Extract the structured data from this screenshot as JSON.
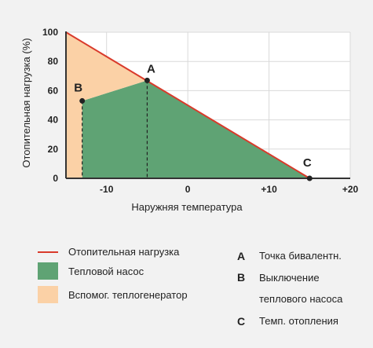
{
  "chart_data": {
    "type": "area",
    "xlabel": "Наружняя температура",
    "ylabel": "Отопительная нагрузка (%)",
    "xlim": [
      -15,
      20
    ],
    "ylim": [
      0,
      100
    ],
    "x_ticks": [
      {
        "value": -10,
        "label": "-10"
      },
      {
        "value": 0,
        "label": "0"
      },
      {
        "value": 10,
        "label": "+10"
      },
      {
        "value": 20,
        "label": "+20"
      }
    ],
    "y_ticks": [
      {
        "value": 0,
        "label": "0"
      },
      {
        "value": 20,
        "label": "20"
      },
      {
        "value": 40,
        "label": "40"
      },
      {
        "value": 60,
        "label": "60"
      },
      {
        "value": 80,
        "label": "80"
      },
      {
        "value": 100,
        "label": "100"
      }
    ],
    "grid": true,
    "series": [
      {
        "name": "Отопительная нагрузка",
        "kind": "line",
        "color": "#d93a2b",
        "points": [
          [
            -15,
            100
          ],
          [
            15,
            0
          ]
        ]
      },
      {
        "name": "Тепловой насос",
        "kind": "area",
        "color": "#5fa374",
        "points": [
          [
            -13,
            0
          ],
          [
            -13,
            53
          ],
          [
            -5,
            67
          ],
          [
            15,
            0
          ]
        ]
      },
      {
        "name": "Вспомог. теплогенератор",
        "kind": "area",
        "color": "#fbd1a6",
        "points": [
          [
            -15,
            0
          ],
          [
            -15,
            100
          ],
          [
            -5,
            67
          ],
          [
            -13,
            53
          ],
          [
            -13,
            0
          ]
        ]
      }
    ],
    "points": [
      {
        "label": "A",
        "x": -5,
        "y": 67,
        "drop_line": true
      },
      {
        "label": "B",
        "x": -13,
        "y": 53,
        "drop_line": true
      },
      {
        "label": "C",
        "x": 15,
        "y": 0,
        "drop_line": false
      }
    ]
  },
  "legend": {
    "items": [
      {
        "label": "Отопительная нагрузка",
        "color": "#d93a2b",
        "kind": "line"
      },
      {
        "label": "Тепловой насос",
        "color": "#5fa374",
        "kind": "box"
      },
      {
        "label": "Вспомог. теплогенератор",
        "color": "#fbd1a6",
        "kind": "box"
      }
    ],
    "points": [
      {
        "letter": "A",
        "text": "Точка бивалентн."
      },
      {
        "letter": "B",
        "text": "Выключение"
      },
      {
        "letter": "",
        "text": "теплового насоса"
      },
      {
        "letter": "C",
        "text": "Темп. отопления"
      }
    ]
  },
  "colors": {
    "background": "#f2f2f2",
    "grid": "#d9d9d9",
    "axis": "#333333",
    "plot_bg": "#ffffff"
  }
}
